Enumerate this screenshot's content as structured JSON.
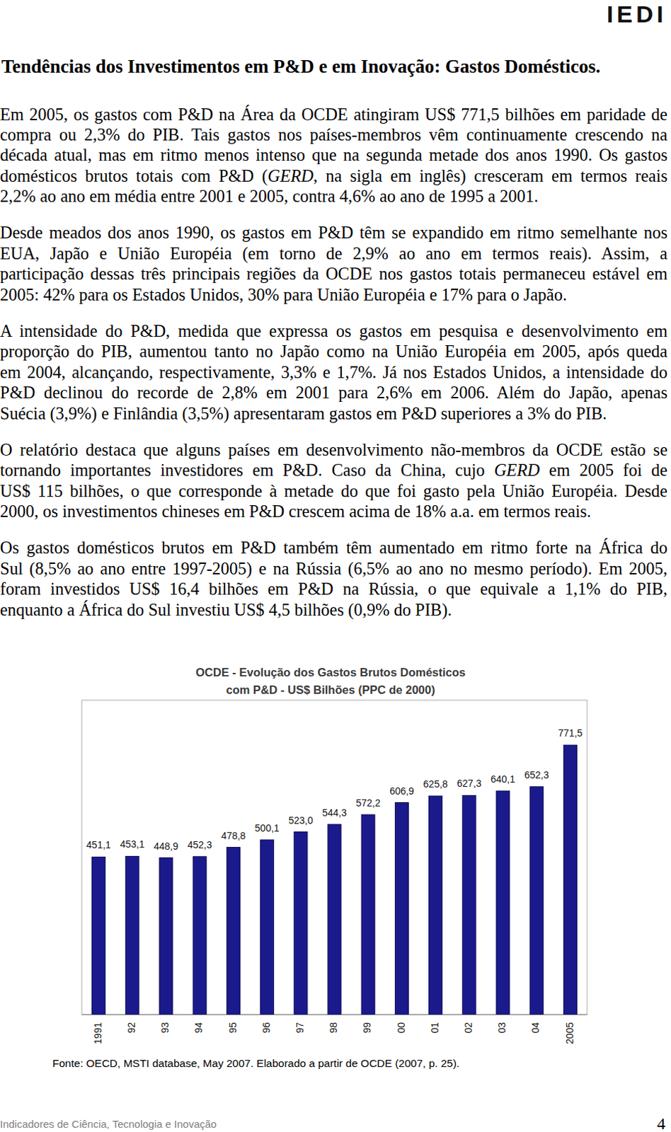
{
  "logo": "IEDI",
  "title": "Tendências dos Investimentos em P&D e em Inovação: Gastos Domésticos.",
  "italic_terms": [
    "GERD"
  ],
  "paragraphs": [
    [
      "Em 2005, os gastos com P&D na Área da OCDE atingiram US$ 771,5 bilhões em paridade de",
      "compra ou 2,3% do PIB. Tais gastos nos países-membros vêm continuamente crescendo na",
      "década atual, mas em ritmo menos intenso que na segunda metade dos anos 1990. Os gastos",
      "domésticos brutos totais com P&D (GERD, na sigla em inglês) cresceram em termos reais",
      "2,2% ao ano em média entre 2001 e 2005, contra 4,6% ao ano de 1995 a 2001."
    ],
    [
      "Desde meados dos anos 1990, os gastos em P&D têm se expandido em ritmo semelhante nos",
      "EUA, Japão e União Européia (em torno de 2,9% ao ano em termos reais). Assim, a",
      "participação dessas três principais regiões da OCDE nos gastos totais permaneceu estável em",
      "2005: 42% para os Estados Unidos, 30% para União Européia e 17% para o Japão."
    ],
    [
      "A intensidade do P&D, medida que expressa os gastos em pesquisa e desenvolvimento em",
      "proporção do PIB, aumentou tanto no Japão como na União Européia em 2005, após queda",
      "em 2004, alcançando, respectivamente, 3,3% e 1,7%. Já nos Estados Unidos, a intensidade do",
      "P&D declinou do recorde de 2,8% em 2001 para 2,6% em 2006. Além do Japão, apenas",
      "Suécia (3,9%) e Finlândia (3,5%) apresentaram gastos em P&D superiores a 3% do PIB."
    ],
    [
      "O relatório destaca que alguns países em desenvolvimento não-membros da OCDE estão se",
      "tornando importantes investidores em P&D. Caso da China, cujo GERD em 2005 foi de",
      "US$ 115 bilhões, o que corresponde à metade do que foi gasto pela União Européia. Desde",
      "2000, os investimentos chineses em P&D crescem acima de 18% a.a. em termos reais."
    ],
    [
      "Os gastos domésticos brutos em P&D também têm aumentado em ritmo forte na África do",
      "Sul (8,5% ao ano entre 1997-2005) e na Rússia (6,5% ao ano no mesmo período). Em 2005,",
      "foram investidos US$ 16,4 bilhões em P&D na Rússia, o que equivale a 1,1% do PIB,",
      "enquanto a África do Sul investiu US$ 4,5 bilhões (0,9% do PIB)."
    ]
  ],
  "chart_data": {
    "type": "bar",
    "title": "OCDE - Evolução dos Gastos Brutos Domésticos",
    "subtitle": "com P&D - US$ Bilhões (PPC de 2000)",
    "categories": [
      "1991",
      "92",
      "93",
      "94",
      "95",
      "96",
      "97",
      "98",
      "99",
      "00",
      "01",
      "02",
      "03",
      "04",
      "2005"
    ],
    "values": [
      451.1,
      453.1,
      448.9,
      452.3,
      478.8,
      500.1,
      523.0,
      544.3,
      572.2,
      606.9,
      625.8,
      627.3,
      640.1,
      652.3,
      771.5
    ],
    "value_labels": [
      "451,1",
      "453,1",
      "448,9",
      "452,3",
      "478,8",
      "500,1",
      "523,0",
      "544,3",
      "572,2",
      "606,9",
      "625,8",
      "627,3",
      "640,1",
      "652,3",
      "771,5"
    ],
    "color": "#1a1a8c",
    "ylim": [
      0,
      900
    ],
    "grid": false,
    "data_labels": true,
    "tick_labels": "x"
  },
  "source": "Fonte: OECD, MSTI database, May 2007. Elaborado a partir de OCDE (2007, p. 25).",
  "footer": {
    "text": "Indicadores de Ciência, Tecnologia e Inovação",
    "page": 4
  }
}
